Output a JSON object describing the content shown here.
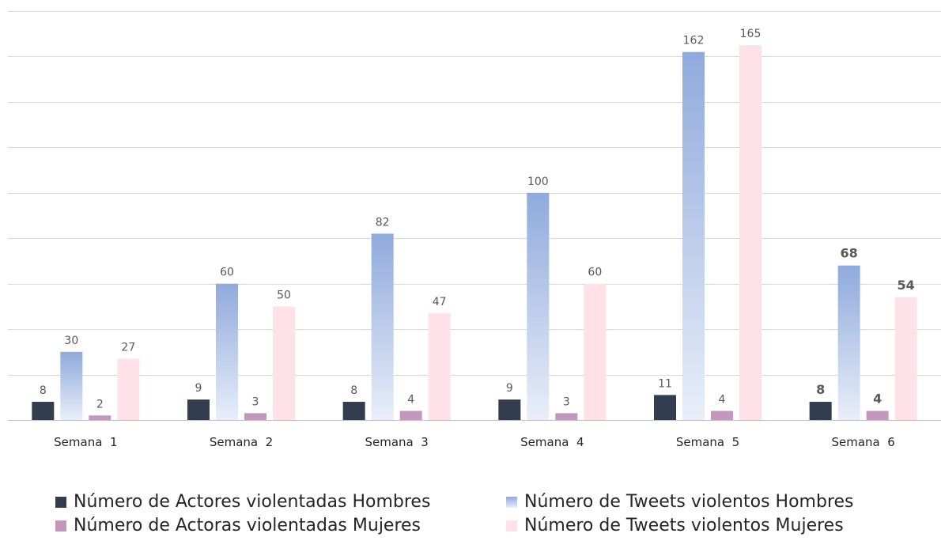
{
  "chart_data": {
    "type": "bar",
    "categories": [
      "Semana  1",
      "Semana  2",
      "Semana  3",
      "Semana  4",
      "Semana  5",
      "Semana  6"
    ],
    "series": [
      {
        "name": "Número de Actores violentadas Hombres",
        "values": [
          8,
          9,
          8,
          9,
          11,
          8
        ],
        "color": "#323e4f",
        "style": "solid"
      },
      {
        "name": "Número de Tweets violentos Hombres",
        "values": [
          30,
          60,
          82,
          100,
          162,
          68
        ],
        "color": "#8faadc",
        "style": "gradient"
      },
      {
        "name": "Número de Actoras violentadas Mujeres",
        "values": [
          2,
          3,
          4,
          3,
          4,
          4
        ],
        "color": "#c497bf",
        "style": "solid"
      },
      {
        "name": "Número de Tweets violentos Mujeres",
        "values": [
          27,
          50,
          47,
          60,
          165,
          54
        ],
        "color": "#ffe2e7",
        "style": "solid"
      }
    ],
    "ylim": [
      0,
      180
    ],
    "grid": true,
    "legend": "bottom",
    "bold_labels_category": 5
  }
}
